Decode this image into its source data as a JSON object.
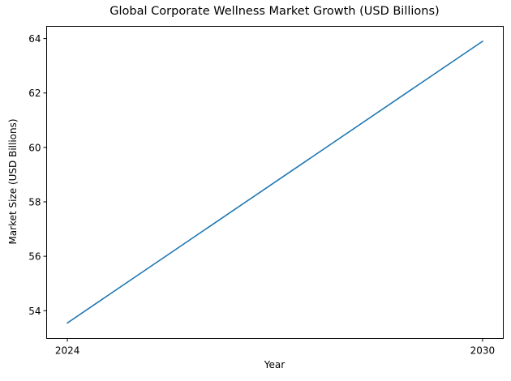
{
  "chart_data": {
    "type": "line",
    "title": "Global Corporate Wellness Market Growth (USD Billions)",
    "xlabel": "Year",
    "ylabel": "Market Size (USD Billions)",
    "x": [
      2024,
      2030
    ],
    "series": [
      {
        "name": "Market Size",
        "values": [
          53.55,
          63.9
        ],
        "color": "#1f77b4"
      }
    ],
    "xticks": [
      "2024",
      "2030"
    ],
    "yticks": [
      "54",
      "56",
      "58",
      "60",
      "62",
      "64"
    ],
    "ylim": [
      52.98,
      64.45
    ],
    "xlim": [
      2023.7,
      2030.3
    ],
    "grid": false,
    "legend": null
  }
}
